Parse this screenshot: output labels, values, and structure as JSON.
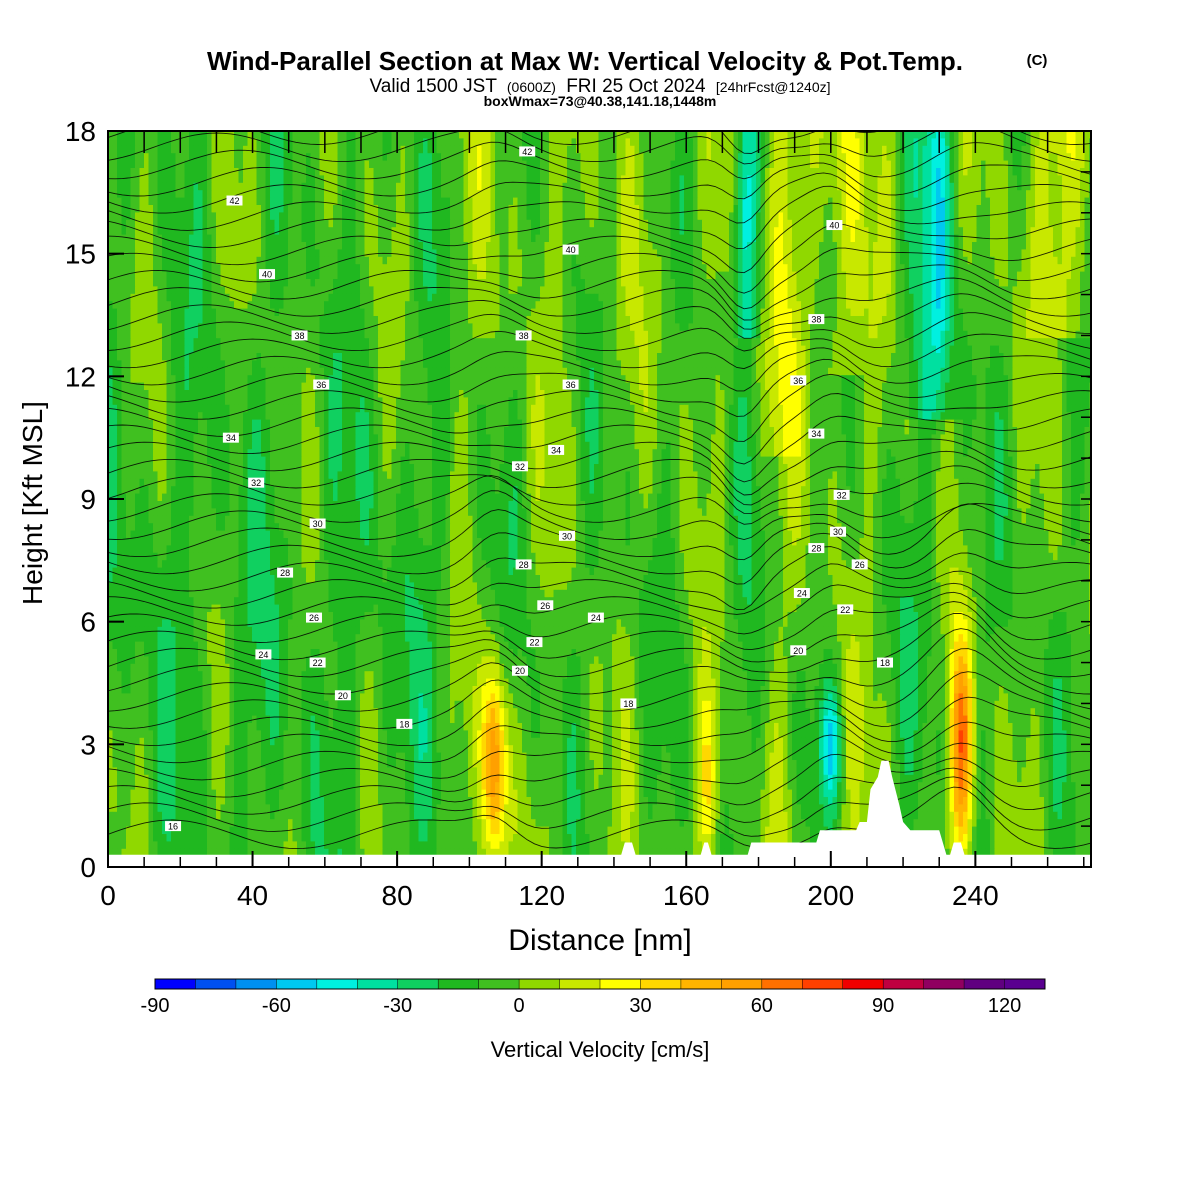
{
  "title": {
    "main": "Wind-Parallel Section at Max W: Vertical Velocity & Pot.Temp.",
    "copyright": "(C)",
    "valid_prefix": "Valid 1500 JST",
    "valid_zulu": "(0600Z)",
    "valid_date": "FRI 25 Oct 2024",
    "forecast": "[24hrFcst@1240z]",
    "boxmax": "boxWmax=73@40.38,141.18,1448m"
  },
  "colors": {
    "negative_strong": "#00e0e0",
    "negative_mid": "#10c060",
    "neutral_green": "#40c020",
    "near_zero": "#90d800",
    "positive_weak": "#ffff00",
    "positive_mid": "#ffa000",
    "positive_strong": "#e00000",
    "positive_max": "#800060",
    "terrain": "#ffffff"
  },
  "chart_data": {
    "type": "heatmap",
    "xlabel": "Distance [nm]",
    "ylabel": "Height [Kft MSL]",
    "xlim": [
      0,
      272
    ],
    "ylim": [
      0,
      18
    ],
    "xticks": [
      0,
      40,
      80,
      120,
      160,
      200,
      240
    ],
    "yticks": [
      0,
      3,
      6,
      9,
      12,
      15,
      18
    ],
    "colorbar": {
      "label": "Vertical Velocity [cm/s]",
      "min": -90,
      "max": 130,
      "step": 10,
      "tick_values": [
        -90,
        -60,
        -30,
        0,
        30,
        60,
        90,
        120
      ],
      "tick_labels": [
        "-90",
        "-60",
        "-30",
        "0",
        "30",
        "60",
        "90",
        "120"
      ],
      "colors": [
        "#0000ff",
        "#0050f0",
        "#0090f0",
        "#00c8f0",
        "#00f0e0",
        "#00e0a0",
        "#10d060",
        "#20b820",
        "#40c020",
        "#90d800",
        "#c8e800",
        "#ffff00",
        "#ffd800",
        "#ffb400",
        "#ffa000",
        "#ff7000",
        "#ff4000",
        "#f00000",
        "#c00040",
        "#900060",
        "#600080",
        "#5a0090"
      ]
    },
    "features": [
      {
        "x": 107,
        "z_bottom": 0.6,
        "z_top": 4.5,
        "w": 70
      },
      {
        "x": 236,
        "z_bottom": 0.5,
        "z_top": 5.2,
        "w": 73
      },
      {
        "x": 166,
        "z_bottom": 0.3,
        "z_top": 3.8,
        "w": 35
      },
      {
        "x": 176,
        "z_bottom": 14,
        "z_top": 18,
        "w": -25
      },
      {
        "x": 200,
        "z_bottom": 2,
        "z_top": 4,
        "w": -25
      },
      {
        "x": 230,
        "z_bottom": 12,
        "z_top": 18,
        "w": -20
      }
    ],
    "theta_labels": [
      {
        "text": "16",
        "x": 18,
        "z": 1.0
      },
      {
        "text": "18",
        "x": 82,
        "z": 3.5
      },
      {
        "text": "18",
        "x": 144,
        "z": 4.0
      },
      {
        "text": "18",
        "x": 215,
        "z": 5.0
      },
      {
        "text": "20",
        "x": 65,
        "z": 4.2
      },
      {
        "text": "20",
        "x": 114,
        "z": 4.8
      },
      {
        "text": "20",
        "x": 191,
        "z": 5.3
      },
      {
        "text": "22",
        "x": 58,
        "z": 5.0
      },
      {
        "text": "22",
        "x": 118,
        "z": 5.5
      },
      {
        "text": "22",
        "x": 204,
        "z": 6.3
      },
      {
        "text": "24",
        "x": 43,
        "z": 5.2
      },
      {
        "text": "24",
        "x": 135,
        "z": 6.1
      },
      {
        "text": "24",
        "x": 192,
        "z": 6.7
      },
      {
        "text": "26",
        "x": 57,
        "z": 6.1
      },
      {
        "text": "26",
        "x": 121,
        "z": 6.4
      },
      {
        "text": "26",
        "x": 208,
        "z": 7.4
      },
      {
        "text": "28",
        "x": 49,
        "z": 7.2
      },
      {
        "text": "28",
        "x": 115,
        "z": 7.4
      },
      {
        "text": "28",
        "x": 196,
        "z": 7.8
      },
      {
        "text": "30",
        "x": 58,
        "z": 8.4
      },
      {
        "text": "30",
        "x": 127,
        "z": 8.1
      },
      {
        "text": "30",
        "x": 202,
        "z": 8.2
      },
      {
        "text": "32",
        "x": 41,
        "z": 9.4
      },
      {
        "text": "32",
        "x": 114,
        "z": 9.8
      },
      {
        "text": "32",
        "x": 203,
        "z": 9.1
      },
      {
        "text": "34",
        "x": 34,
        "z": 10.5
      },
      {
        "text": "34",
        "x": 124,
        "z": 10.2
      },
      {
        "text": "34",
        "x": 196,
        "z": 10.6
      },
      {
        "text": "36",
        "x": 59,
        "z": 11.8
      },
      {
        "text": "36",
        "x": 128,
        "z": 11.8
      },
      {
        "text": "36",
        "x": 191,
        "z": 11.9
      },
      {
        "text": "38",
        "x": 53,
        "z": 13.0
      },
      {
        "text": "38",
        "x": 115,
        "z": 13.0
      },
      {
        "text": "38",
        "x": 196,
        "z": 13.4
      },
      {
        "text": "40",
        "x": 44,
        "z": 14.5
      },
      {
        "text": "40",
        "x": 128,
        "z": 15.1
      },
      {
        "text": "40",
        "x": 201,
        "z": 15.7
      },
      {
        "text": "42",
        "x": 35,
        "z": 16.3
      },
      {
        "text": "42",
        "x": 116,
        "z": 17.5
      }
    ],
    "terrain_profile": [
      [
        0,
        0.3
      ],
      [
        142,
        0.3
      ],
      [
        143,
        0.6
      ],
      [
        145,
        0.6
      ],
      [
        146,
        0.3
      ],
      [
        164,
        0.3
      ],
      [
        165,
        0.6
      ],
      [
        166,
        0.6
      ],
      [
        167,
        0.3
      ],
      [
        177,
        0.3
      ],
      [
        178,
        0.6
      ],
      [
        196,
        0.6
      ],
      [
        197,
        0.9
      ],
      [
        207,
        0.9
      ],
      [
        208,
        1.1
      ],
      [
        210,
        1.1
      ],
      [
        211,
        1.9
      ],
      [
        213,
        2.2
      ],
      [
        214,
        2.6
      ],
      [
        216,
        2.6
      ],
      [
        217,
        2.2
      ],
      [
        219,
        1.5
      ],
      [
        220,
        1.1
      ],
      [
        222,
        0.9
      ],
      [
        230,
        0.9
      ],
      [
        232,
        0.3
      ],
      [
        233,
        0.3
      ],
      [
        234,
        0.6
      ],
      [
        236,
        0.6
      ],
      [
        237,
        0.3
      ],
      [
        272,
        0.3
      ]
    ]
  }
}
